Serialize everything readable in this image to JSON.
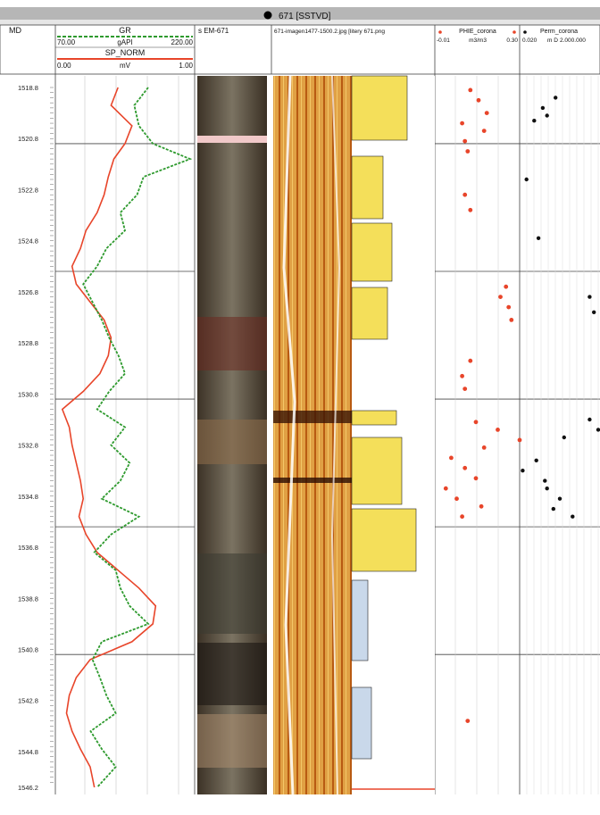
{
  "title": "671 [SSTVD]",
  "header": {
    "md_label": "MD",
    "gr": {
      "name": "GR",
      "min": "70.00",
      "unit": "gAPI",
      "max": "220.00"
    },
    "sp": {
      "name": "SP_NORM",
      "min": "0.00",
      "unit": "mV",
      "max": "1.00"
    },
    "core_photo": "s EM-671",
    "image_log": "671-imagen1477-1500.2.jpg [litery 671.png",
    "phie": {
      "name": "PHIE_corona",
      "min": "-0.01",
      "unit": "m3/m3",
      "max": "0.30"
    },
    "perm": {
      "name": "Perm_corona",
      "min": "0.020",
      "unit": "m D",
      "max": "2.000.000"
    }
  },
  "colors": {
    "gr_curve": "#2e9a2e",
    "sp_curve": "#e8452a",
    "phie_dots": "#e8452a",
    "perm_dots": "#111111",
    "track_border": "#444444"
  },
  "chart_data": {
    "type": "line",
    "y_axis": {
      "label": "MD",
      "range": [
        1518.8,
        1546.2
      ],
      "ticks": [
        "1518.8",
        "1520.8",
        "1522.8",
        "1524.8",
        "1526.8",
        "1528.8",
        "1530.8",
        "1532.8",
        "1534.8",
        "1536.8",
        "1538.8",
        "1540.8",
        "1542.8",
        "1544.8",
        "1546.2"
      ]
    },
    "series": [
      {
        "name": "GR",
        "xlim": [
          70,
          220
        ],
        "depth": [
          1518.8,
          1519.5,
          1520.3,
          1521.0,
          1521.6,
          1522.3,
          1523.0,
          1523.7,
          1524.4,
          1525.1,
          1525.8,
          1526.5,
          1527.2,
          1527.9,
          1528.6,
          1529.3,
          1530.0,
          1530.7,
          1531.4,
          1532.1,
          1532.8,
          1533.5,
          1534.2,
          1534.9,
          1535.6,
          1536.3,
          1537.0,
          1537.7,
          1538.4,
          1539.1,
          1539.8,
          1540.5,
          1541.2,
          1541.9,
          1542.6,
          1543.3,
          1544.0,
          1544.7,
          1545.4,
          1546.2
        ],
        "values": [
          170,
          155,
          160,
          175,
          215,
          165,
          158,
          140,
          145,
          125,
          115,
          100,
          110,
          120,
          128,
          138,
          145,
          128,
          115,
          145,
          130,
          150,
          140,
          120,
          160,
          130,
          112,
          135,
          140,
          150,
          170,
          120,
          110,
          118,
          125,
          135,
          108,
          120,
          135,
          115
        ]
      },
      {
        "name": "SP_NORM",
        "xlim": [
          0,
          1
        ],
        "depth": [
          1518.8,
          1519.5,
          1520.3,
          1521.0,
          1521.6,
          1522.3,
          1523.0,
          1523.7,
          1524.4,
          1525.1,
          1525.8,
          1526.5,
          1527.2,
          1527.9,
          1528.6,
          1529.3,
          1530.0,
          1530.7,
          1531.4,
          1532.1,
          1532.8,
          1533.5,
          1534.2,
          1534.9,
          1535.6,
          1536.3,
          1537.0,
          1537.7,
          1538.4,
          1539.1,
          1539.8,
          1540.5,
          1541.2,
          1541.9,
          1542.6,
          1543.3,
          1544.0,
          1544.7,
          1545.4,
          1546.2
        ],
        "values": [
          0.45,
          0.4,
          0.55,
          0.5,
          0.42,
          0.38,
          0.35,
          0.3,
          0.22,
          0.18,
          0.12,
          0.15,
          0.25,
          0.35,
          0.4,
          0.38,
          0.32,
          0.2,
          0.05,
          0.1,
          0.12,
          0.15,
          0.18,
          0.2,
          0.17,
          0.22,
          0.3,
          0.45,
          0.6,
          0.72,
          0.7,
          0.55,
          0.25,
          0.15,
          0.1,
          0.08,
          0.12,
          0.18,
          0.25,
          0.28
        ]
      },
      {
        "name": "PHIE_corona",
        "xlim": [
          -0.01,
          0.3
        ],
        "type": "scatter",
        "depth": [
          1518.9,
          1519.3,
          1519.8,
          1520.2,
          1520.5,
          1520.9,
          1521.3,
          1523.0,
          1523.6,
          1526.6,
          1527.0,
          1527.4,
          1527.9,
          1529.5,
          1530.1,
          1530.6,
          1531.9,
          1532.2,
          1532.6,
          1532.9,
          1533.3,
          1533.7,
          1534.1,
          1534.5,
          1534.9,
          1535.2,
          1535.6,
          1543.6
        ],
        "values": [
          0.12,
          0.15,
          0.18,
          0.09,
          0.17,
          0.1,
          0.11,
          0.1,
          0.12,
          0.25,
          0.23,
          0.26,
          0.27,
          0.12,
          0.09,
          0.1,
          0.14,
          0.22,
          0.3,
          0.17,
          0.05,
          0.1,
          0.14,
          0.03,
          0.07,
          0.16,
          0.09,
          0.11
        ]
      },
      {
        "name": "Perm_corona",
        "xlim": [
          0.02,
          2000000
        ],
        "type": "scatter",
        "depth": [
          1519.2,
          1519.6,
          1519.9,
          1520.1,
          1522.4,
          1524.7,
          1527.0,
          1527.6,
          1531.8,
          1532.2,
          1532.5,
          1533.4,
          1533.8,
          1534.2,
          1534.5,
          1534.9,
          1535.3,
          1535.6
        ],
        "values": [
          0.8,
          0.5,
          0.6,
          0.3,
          0.12,
          0.4,
          1.6,
          1.7,
          1.6,
          1.8,
          1.0,
          0.35,
          0.03,
          0.55,
          0.6,
          0.9,
          0.75,
          1.2
        ]
      }
    ]
  }
}
